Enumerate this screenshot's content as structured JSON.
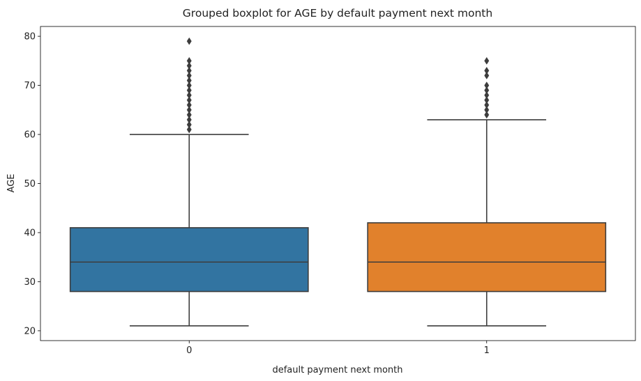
{
  "chart_data": {
    "type": "boxplot",
    "title": "Grouped boxplot for AGE by default payment next month",
    "xlabel": "default payment next month",
    "ylabel": "AGE",
    "categories": [
      "0",
      "1"
    ],
    "ylim": [
      18,
      82
    ],
    "yticks": [
      "20",
      "30",
      "40",
      "50",
      "60",
      "70",
      "80"
    ],
    "grid": false,
    "legend": "none",
    "boxes": [
      {
        "category": "0",
        "color": "#3274a1",
        "whisker_low": 21,
        "q1": 28,
        "median": 34,
        "q3": 41,
        "whisker_high": 60,
        "outliers": [
          61,
          62,
          63,
          64,
          65,
          66,
          67,
          68,
          69,
          70,
          71,
          72,
          73,
          74,
          75,
          79
        ]
      },
      {
        "category": "1",
        "color": "#e1812c",
        "whisker_low": 21,
        "q1": 28,
        "median": 34,
        "q3": 42,
        "whisker_high": 63,
        "outliers": [
          64,
          65,
          66,
          67,
          68,
          69,
          70,
          72,
          73,
          75
        ]
      }
    ],
    "line_color": "#3d3d3d"
  }
}
